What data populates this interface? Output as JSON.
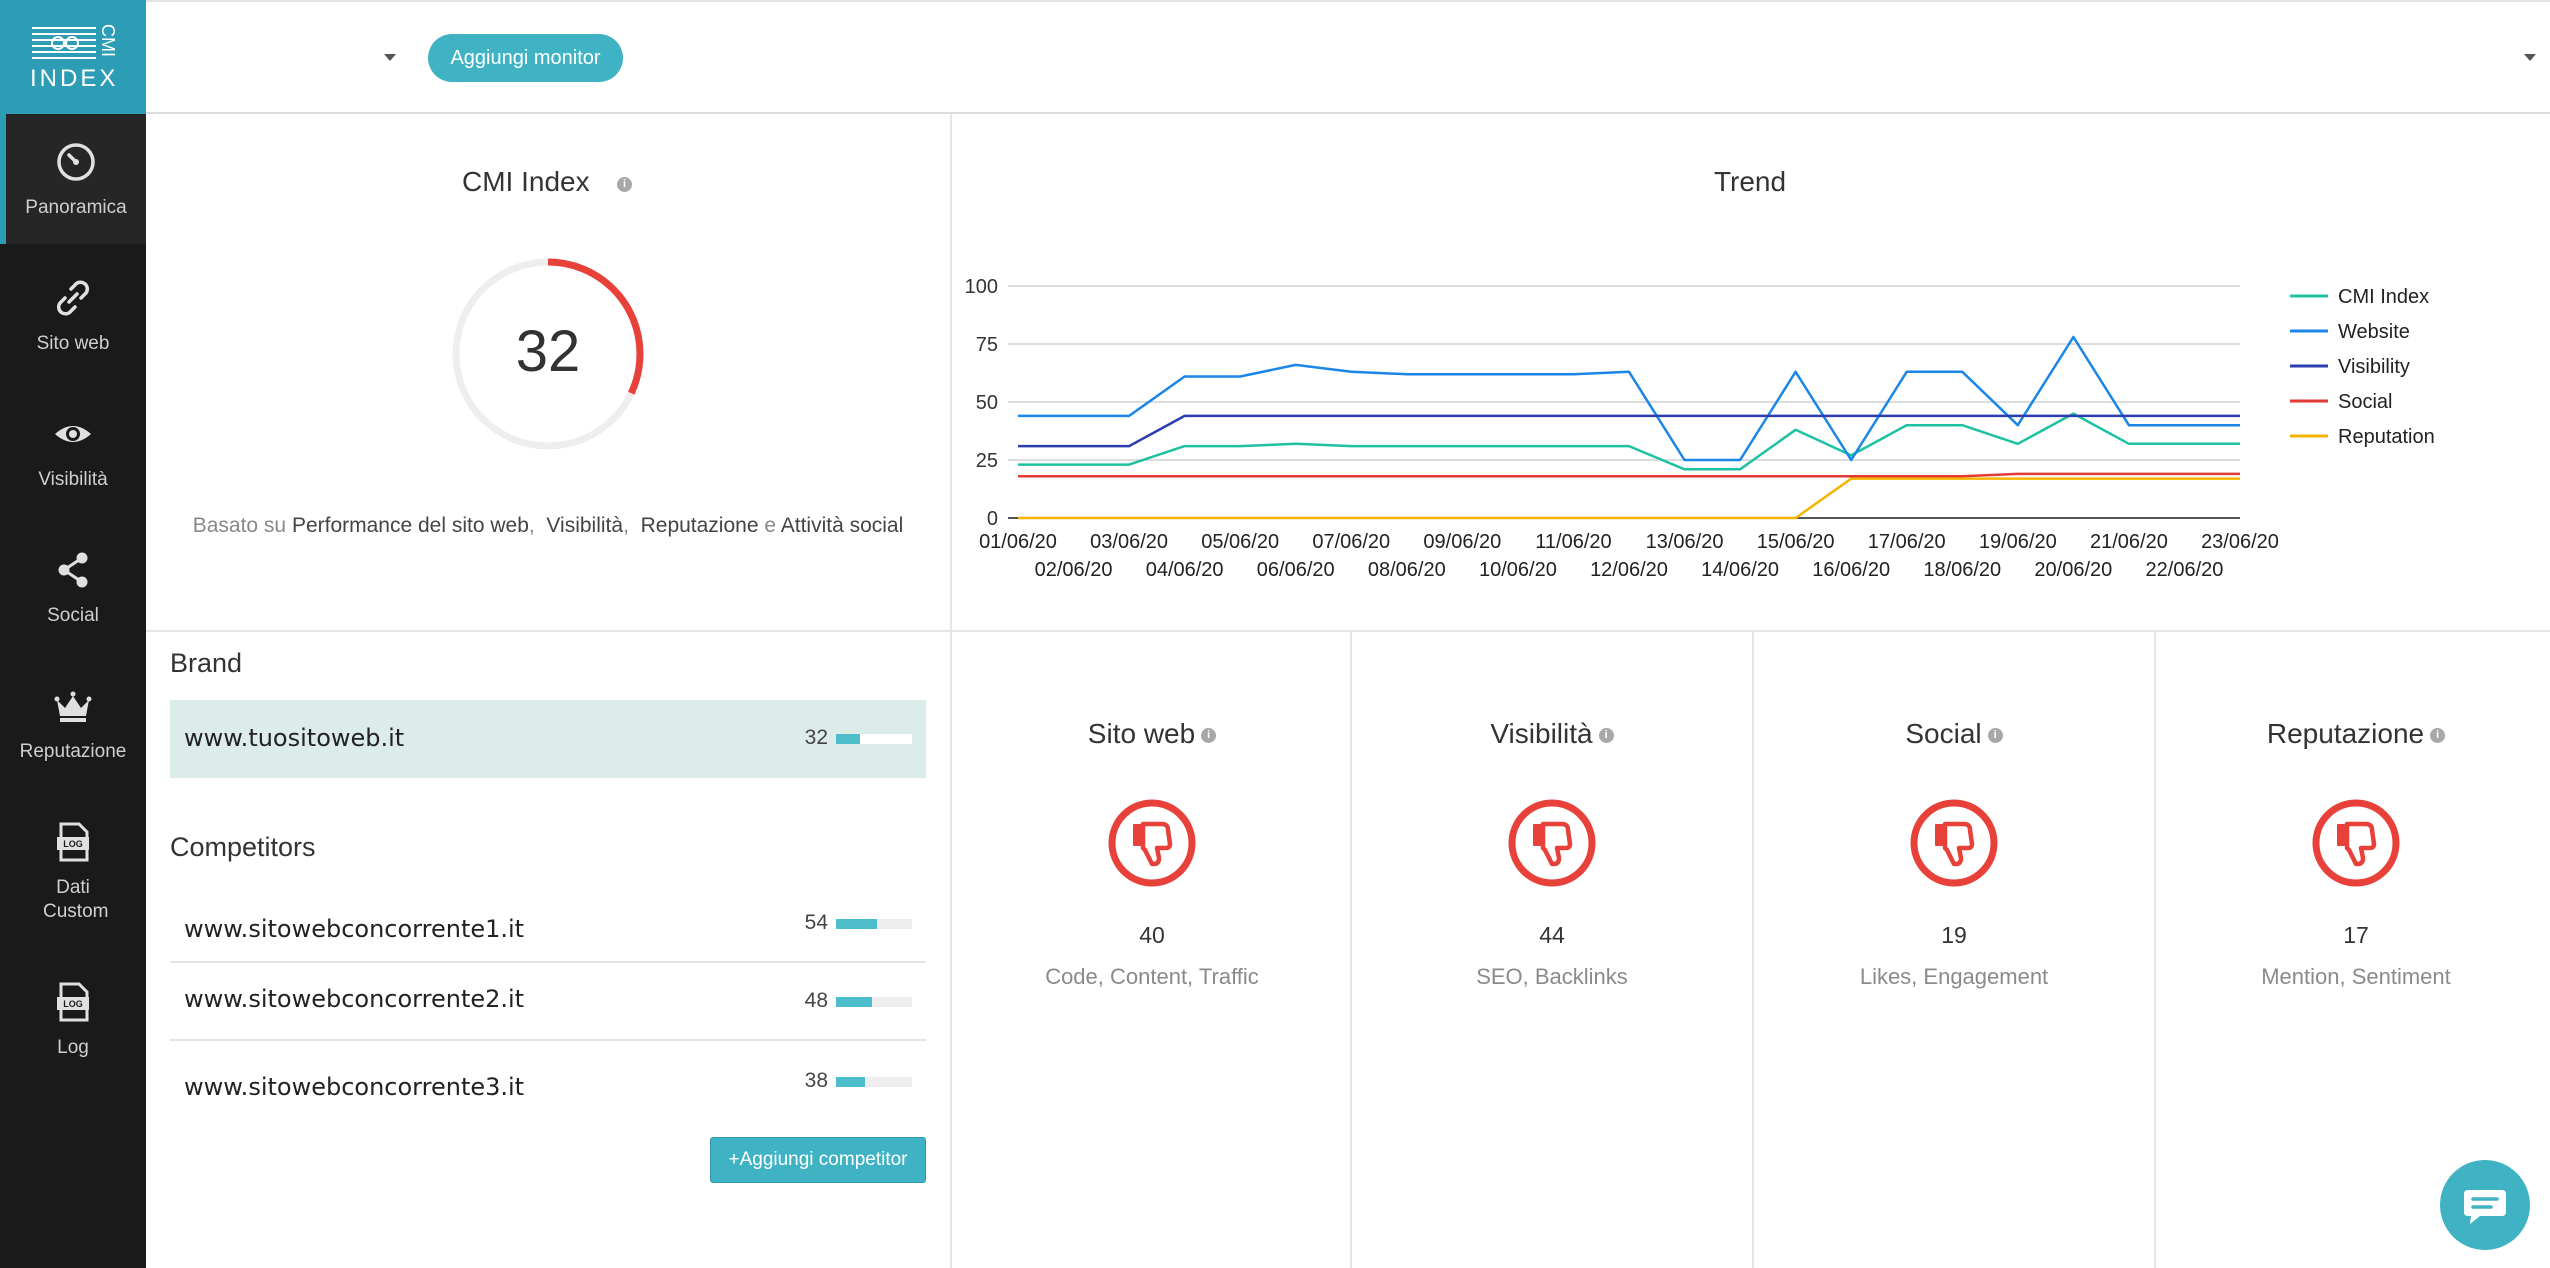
{
  "app": {
    "logo_text_main": "INDEX",
    "logo_text_side": "CMI"
  },
  "sidebar": {
    "items": [
      {
        "label": "Panoramica",
        "icon": "gauge-icon",
        "active": true
      },
      {
        "label": "Sito web",
        "icon": "link-icon"
      },
      {
        "label": "Visibilità",
        "icon": "eye-icon"
      },
      {
        "label": "Social",
        "icon": "share-icon"
      },
      {
        "label": "Reputazione",
        "icon": "crown-icon"
      },
      {
        "label": "Dati Custom",
        "icon": "log-file-icon"
      },
      {
        "label": "Log",
        "icon": "log-file-icon"
      }
    ]
  },
  "topbar": {
    "add_monitor_label": "Aggiungi monitor"
  },
  "cmi": {
    "title": "CMI Index",
    "value": "32",
    "score": 32,
    "max": 100,
    "desc_prefix": "Basato su",
    "desc_item1": "Performance del sito web",
    "desc_item2": "Visibilità",
    "desc_item3": "Reputazione",
    "desc_conj": "e",
    "desc_item4": "Attività social"
  },
  "trend": {
    "title": "Trend"
  },
  "chart_data": {
    "type": "line",
    "title": "Trend",
    "x": [
      "01/06/20",
      "02/06/20",
      "03/06/20",
      "04/06/20",
      "05/06/20",
      "06/06/20",
      "07/06/20",
      "08/06/20",
      "09/06/20",
      "10/06/20",
      "11/06/20",
      "12/06/20",
      "13/06/20",
      "14/06/20",
      "15/06/20",
      "16/06/20",
      "17/06/20",
      "18/06/20",
      "19/06/20",
      "20/06/20",
      "21/06/20",
      "22/06/20",
      "23/06/20"
    ],
    "yticks": [
      "0",
      "25",
      "50",
      "75",
      "100"
    ],
    "ylim": [
      0,
      100
    ],
    "grid": true,
    "legend": "right",
    "series": [
      {
        "name": "CMI Index",
        "color": "#1ec2a0",
        "values": [
          23,
          23,
          23,
          31,
          31,
          32,
          31,
          31,
          31,
          31,
          31,
          31,
          21,
          21,
          38,
          27,
          40,
          40,
          32,
          45,
          32,
          32,
          32
        ]
      },
      {
        "name": "Website",
        "color": "#1a86e8",
        "values": [
          44,
          44,
          44,
          61,
          61,
          66,
          63,
          62,
          62,
          62,
          62,
          63,
          25,
          25,
          63,
          25,
          63,
          63,
          40,
          78,
          40,
          40,
          40
        ]
      },
      {
        "name": "Visibility",
        "color": "#2b3db0",
        "values": [
          31,
          31,
          31,
          44,
          44,
          44,
          44,
          44,
          44,
          44,
          44,
          44,
          44,
          44,
          44,
          44,
          44,
          44,
          44,
          44,
          44,
          44,
          44
        ]
      },
      {
        "name": "Social",
        "color": "#e53935",
        "values": [
          18,
          18,
          18,
          18,
          18,
          18,
          18,
          18,
          18,
          18,
          18,
          18,
          18,
          18,
          18,
          18,
          18,
          18,
          19,
          19,
          19,
          19,
          19
        ]
      },
      {
        "name": "Reputation",
        "color": "#f5b400",
        "values": [
          0,
          0,
          0,
          0,
          0,
          0,
          0,
          0,
          0,
          0,
          0,
          0,
          0,
          0,
          0,
          17,
          17,
          17,
          17,
          17,
          17,
          17,
          17
        ]
      }
    ]
  },
  "brand": {
    "heading": "Brand",
    "name": "www.tuositoweb.it",
    "value": "32",
    "score": 32
  },
  "competitors": {
    "heading": "Competitors",
    "items": [
      {
        "name": "www.sitowebconcorrente1.it",
        "value": "54",
        "score": 54
      },
      {
        "name": "www.sitowebconcorrente2.it",
        "value": "48",
        "score": 48
      },
      {
        "name": "www.sitowebconcorrente3.it",
        "value": "38",
        "score": 38
      }
    ],
    "add_label": "+Aggiungi competitor"
  },
  "cards": [
    {
      "title": "Sito web",
      "value": "40",
      "sub": "Code, Content, Traffic",
      "icon": "thumbs-down-icon"
    },
    {
      "title": "Visibilità",
      "value": "44",
      "sub": "SEO, Backlinks",
      "icon": "thumbs-down-icon"
    },
    {
      "title": "Social",
      "value": "19",
      "sub": "Likes, Engagement",
      "icon": "thumbs-down-icon"
    },
    {
      "title": "Reputazione",
      "value": "17",
      "sub": "Mention, Sentiment",
      "icon": "thumbs-down-icon"
    }
  ],
  "colors": {
    "accent": "#3fb3c4",
    "sidebar_bg": "#1a1a1a",
    "gauge": "#e8413a",
    "negative": "#e8413a",
    "bar": "#4dbccb"
  }
}
